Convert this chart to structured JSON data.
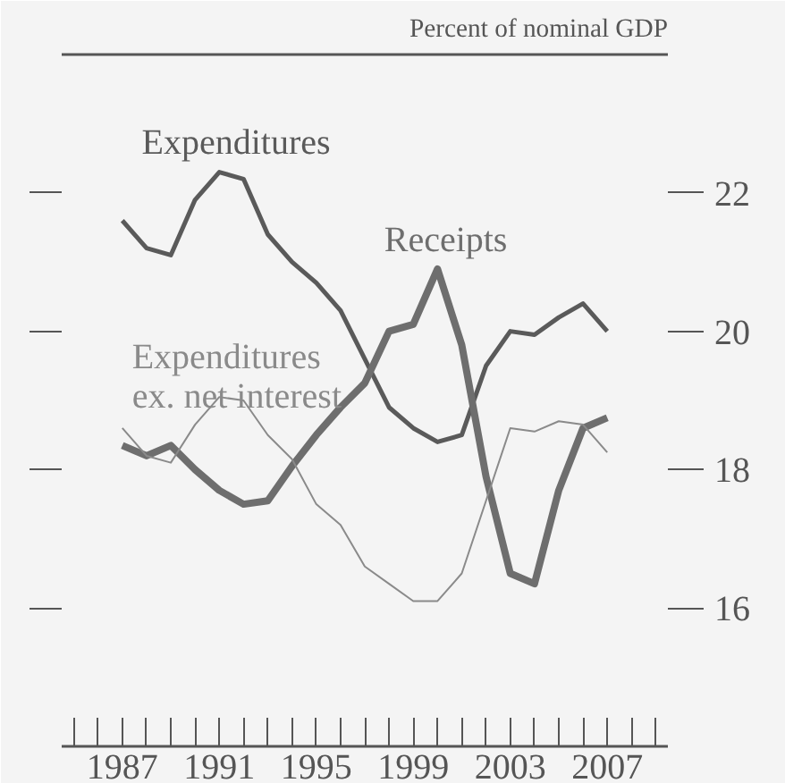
{
  "chart_data": {
    "type": "line",
    "title": "Percent of nominal GDP",
    "x": [
      1987,
      1988,
      1989,
      1990,
      1991,
      1992,
      1993,
      1994,
      1995,
      1996,
      1997,
      1998,
      1999,
      2000,
      2001,
      2002,
      2003,
      2004,
      2005,
      2006,
      2007
    ],
    "series": [
      {
        "name": "Expenditures",
        "color": "#5a5a5a",
        "values": [
          21.6,
          21.2,
          21.1,
          21.9,
          22.3,
          22.2,
          21.4,
          21.0,
          20.7,
          20.3,
          19.6,
          18.9,
          18.6,
          18.4,
          18.5,
          19.5,
          20.0,
          19.95,
          20.2,
          20.4,
          20.0
        ]
      },
      {
        "name": "Receipts",
        "color": "#6e6e6e",
        "values": [
          18.35,
          18.2,
          18.35,
          18.0,
          17.7,
          17.5,
          17.55,
          18.05,
          18.5,
          18.9,
          19.25,
          20.0,
          20.1,
          20.9,
          19.8,
          17.9,
          16.5,
          16.35,
          17.7,
          18.6,
          18.75
        ]
      },
      {
        "name": "Expenditures\nex. net interest",
        "color": "#8a8a8a",
        "values": [
          18.6,
          18.2,
          18.1,
          18.65,
          19.05,
          19.0,
          18.5,
          18.15,
          17.5,
          17.2,
          16.6,
          16.35,
          16.1,
          16.1,
          16.5,
          17.55,
          18.6,
          18.55,
          18.7,
          18.65,
          18.25
        ]
      }
    ],
    "xlim": [
      1984.5,
      2009.5
    ],
    "xticks": [
      {
        "value": 1985,
        "label": null
      },
      {
        "value": 1986,
        "label": null
      },
      1987,
      {
        "value": 1988,
        "label": null
      },
      {
        "value": 1989,
        "label": null
      },
      {
        "value": 1990,
        "label": null
      },
      1991,
      {
        "value": 1992,
        "label": null
      },
      {
        "value": 1993,
        "label": null
      },
      {
        "value": 1994,
        "label": null
      },
      1995,
      {
        "value": 1996,
        "label": null
      },
      {
        "value": 1997,
        "label": null
      },
      {
        "value": 1998,
        "label": null
      },
      1999,
      {
        "value": 2000,
        "label": null
      },
      {
        "value": 2001,
        "label": null
      },
      {
        "value": 2002,
        "label": null
      },
      2003,
      {
        "value": 2004,
        "label": null
      },
      {
        "value": 2005,
        "label": null
      },
      {
        "value": 2006,
        "label": null
      },
      2007,
      {
        "value": 2008,
        "label": null
      },
      {
        "value": 2009,
        "label": null
      }
    ],
    "ylim": [
      14,
      24
    ],
    "yticks": [
      16,
      18,
      20,
      22
    ],
    "grid": false,
    "legend": false,
    "line_style": "solid",
    "marker": "none"
  }
}
